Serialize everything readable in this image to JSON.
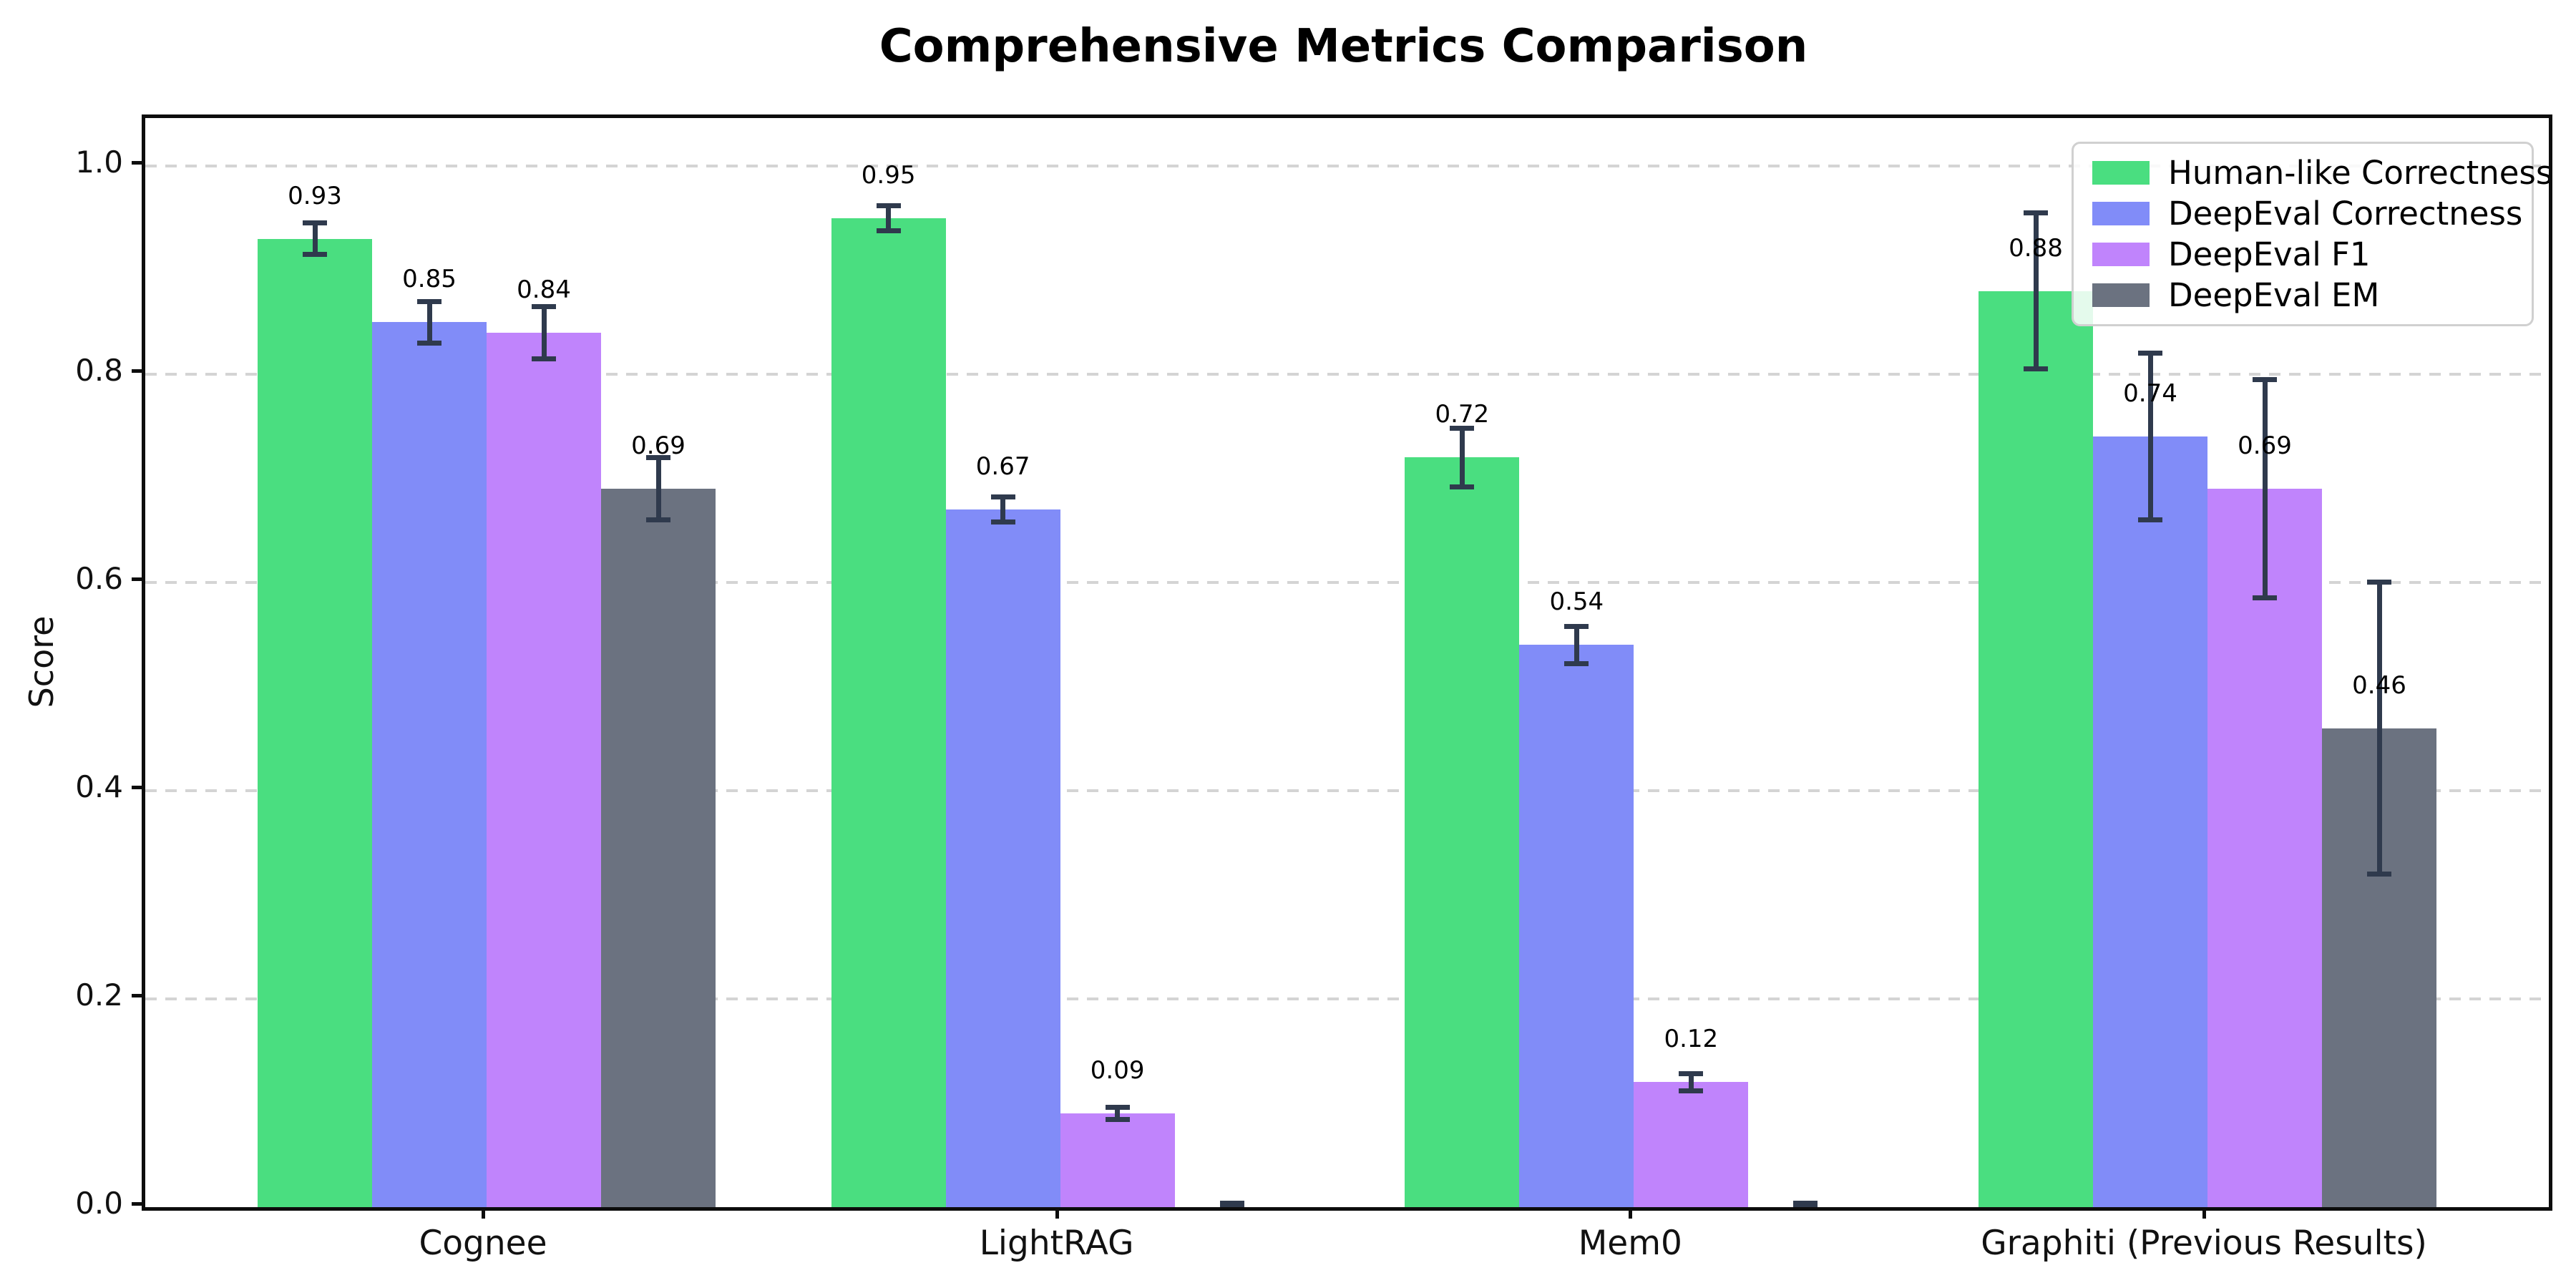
{
  "chart_data": {
    "type": "bar",
    "title": "Comprehensive Metrics Comparison",
    "ylabel": "Score",
    "xlabel": "",
    "categories": [
      "Cognee",
      "LightRAG",
      "Mem0",
      "Graphiti (Previous Results)"
    ],
    "series": [
      {
        "name": "Human-like Correctness",
        "color": "#4ade80",
        "values": [
          0.93,
          0.95,
          0.72,
          0.88
        ],
        "errors": [
          0.015,
          0.012,
          0.028,
          0.075
        ]
      },
      {
        "name": "DeepEval Correctness",
        "color": "#818cf8",
        "values": [
          0.85,
          0.67,
          0.54,
          0.74
        ],
        "errors": [
          0.02,
          0.012,
          0.018,
          0.08
        ]
      },
      {
        "name": "DeepEval F1",
        "color": "#c084fc",
        "values": [
          0.84,
          0.09,
          0.12,
          0.69
        ],
        "errors": [
          0.025,
          0.006,
          0.008,
          0.105
        ]
      },
      {
        "name": "DeepEval EM",
        "color": "#6b7280",
        "values": [
          0.69,
          0.0,
          0.0,
          0.46
        ],
        "errors": [
          0.03,
          0.004,
          0.004,
          0.14
        ]
      }
    ],
    "ylim": [
      0,
      1.046
    ],
    "yticks": {
      "values": [
        0.0,
        0.2,
        0.4,
        0.6,
        0.8,
        1.0
      ],
      "labels": [
        "0.0",
        "0.2",
        "0.4",
        "0.6",
        "0.8",
        "1.0"
      ]
    },
    "grid": "horizontal dashed",
    "gridline_color": "#d4d4d4",
    "error_bar_color": "#2f3a4d",
    "value_label_format": "2dp",
    "value_labels_hidden_for_zero": true,
    "legend": {
      "position": "upper right",
      "entries": [
        "Human-like Correctness",
        "DeepEval Correctness",
        "DeepEval F1",
        "DeepEval EM"
      ]
    }
  }
}
